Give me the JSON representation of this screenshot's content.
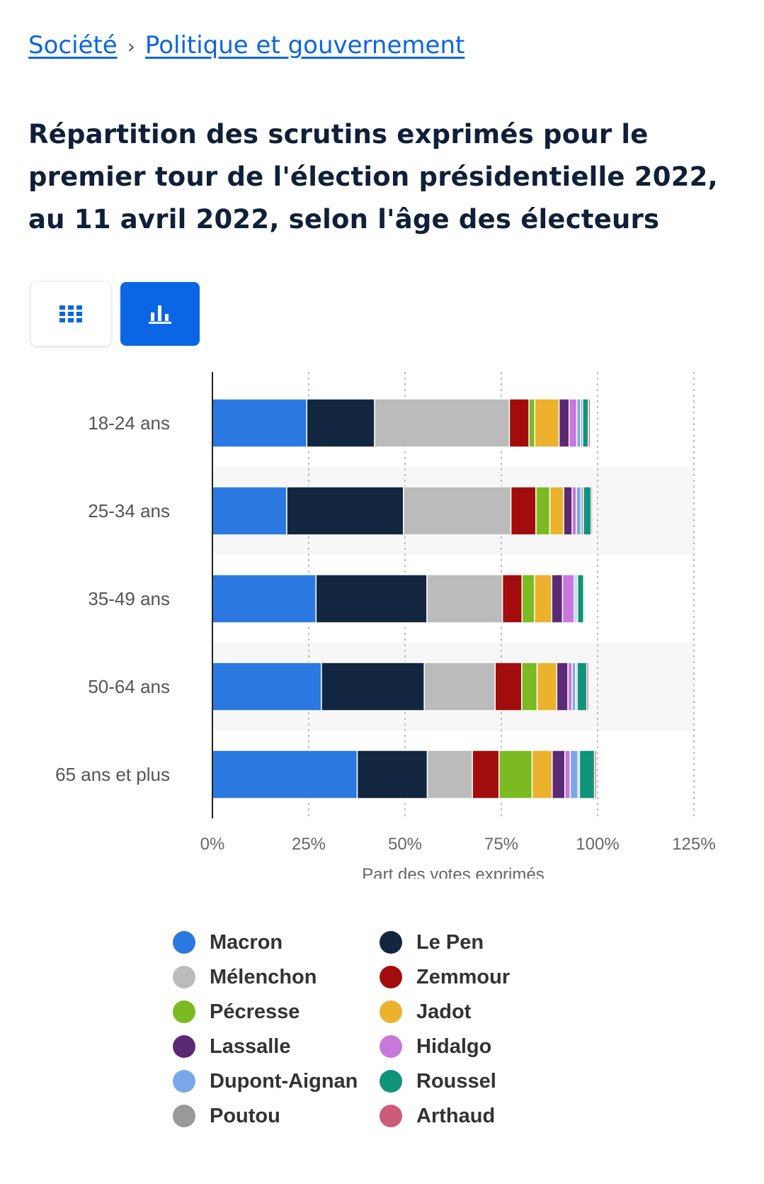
{
  "breadcrumb": {
    "items": [
      "Société",
      "Politique et gouvernement"
    ],
    "separator": "›"
  },
  "title": "Répartition des scrutins exprimés pour le premier tour de l'élection présidentielle 2022, au 11 avril 2022, selon l'âge des électeurs",
  "view_toggle": {
    "table_icon": "grid-icon",
    "chart_icon": "bar-chart-icon",
    "active": "chart",
    "active_color": "#0a66e4"
  },
  "chart_data": {
    "type": "bar",
    "orientation": "horizontal",
    "stacked": true,
    "categories": [
      "18-24 ans",
      "25-34 ans",
      "35-49 ans",
      "50-64 ans",
      "65 ans et plus"
    ],
    "xlabel": "Part des votes exprimés",
    "xlim": [
      0,
      125
    ],
    "xticks": [
      "0%",
      "25%",
      "50%",
      "75%",
      "100%",
      "125%"
    ],
    "grid": true,
    "legend_position": "bottom",
    "series": [
      {
        "name": "Macron",
        "color": "#2a78e0",
        "values": [
          24.5,
          19.3,
          26.9,
          28.3,
          37.6
        ]
      },
      {
        "name": "Le Pen",
        "color": "#12263f",
        "values": [
          17.6,
          30.3,
          28.8,
          26.7,
          18.2
        ]
      },
      {
        "name": "Mélenchon",
        "color": "#bbbbbb",
        "values": [
          35.0,
          27.9,
          19.6,
          18.4,
          11.7
        ]
      },
      {
        "name": "Zemmour",
        "color": "#a30c0c",
        "values": [
          5.1,
          6.5,
          5.1,
          6.9,
          6.9
        ]
      },
      {
        "name": "Pécresse",
        "color": "#7bba22",
        "values": [
          1.5,
          3.6,
          3.2,
          4.0,
          8.6
        ]
      },
      {
        "name": "Jadot",
        "color": "#ecb22e",
        "values": [
          6.3,
          3.6,
          4.5,
          5.1,
          5.2
        ]
      },
      {
        "name": "Lassalle",
        "color": "#5b2a75",
        "values": [
          2.6,
          2.2,
          2.8,
          2.9,
          3.3
        ]
      },
      {
        "name": "Hidalgo",
        "color": "#c878dc",
        "values": [
          2.0,
          1.1,
          3.0,
          1.1,
          1.4
        ]
      },
      {
        "name": "Dupont-Aignan",
        "color": "#7aa7e8",
        "values": [
          1.0,
          1.2,
          0.5,
          0.9,
          2.0
        ]
      },
      {
        "name": "Poutou",
        "color": "#999999",
        "values": [
          0.5,
          0.6,
          0.4,
          0.4,
          0.4
        ]
      },
      {
        "name": "Roussel",
        "color": "#0f937a",
        "values": [
          1.5,
          2.0,
          1.6,
          2.5,
          3.9
        ]
      },
      {
        "name": "Arthaud",
        "color": "#cc5c78",
        "values": [
          0.5,
          0.4,
          0.3,
          0.5,
          0.5
        ]
      }
    ]
  },
  "legend": [
    {
      "label": "Macron",
      "color": "#2a78e0"
    },
    {
      "label": "Le Pen",
      "color": "#12263f"
    },
    {
      "label": "Mélenchon",
      "color": "#bbbbbb"
    },
    {
      "label": "Zemmour",
      "color": "#a30c0c"
    },
    {
      "label": "Pécresse",
      "color": "#7bba22"
    },
    {
      "label": "Jadot",
      "color": "#ecb22e"
    },
    {
      "label": "Lassalle",
      "color": "#5b2a75"
    },
    {
      "label": "Hidalgo",
      "color": "#c878dc"
    },
    {
      "label": "Dupont-Aignan",
      "color": "#7aa7e8"
    },
    {
      "label": "Roussel",
      "color": "#0f937a"
    },
    {
      "label": "Poutou",
      "color": "#999999"
    },
    {
      "label": "Arthaud",
      "color": "#cc5c78"
    }
  ]
}
